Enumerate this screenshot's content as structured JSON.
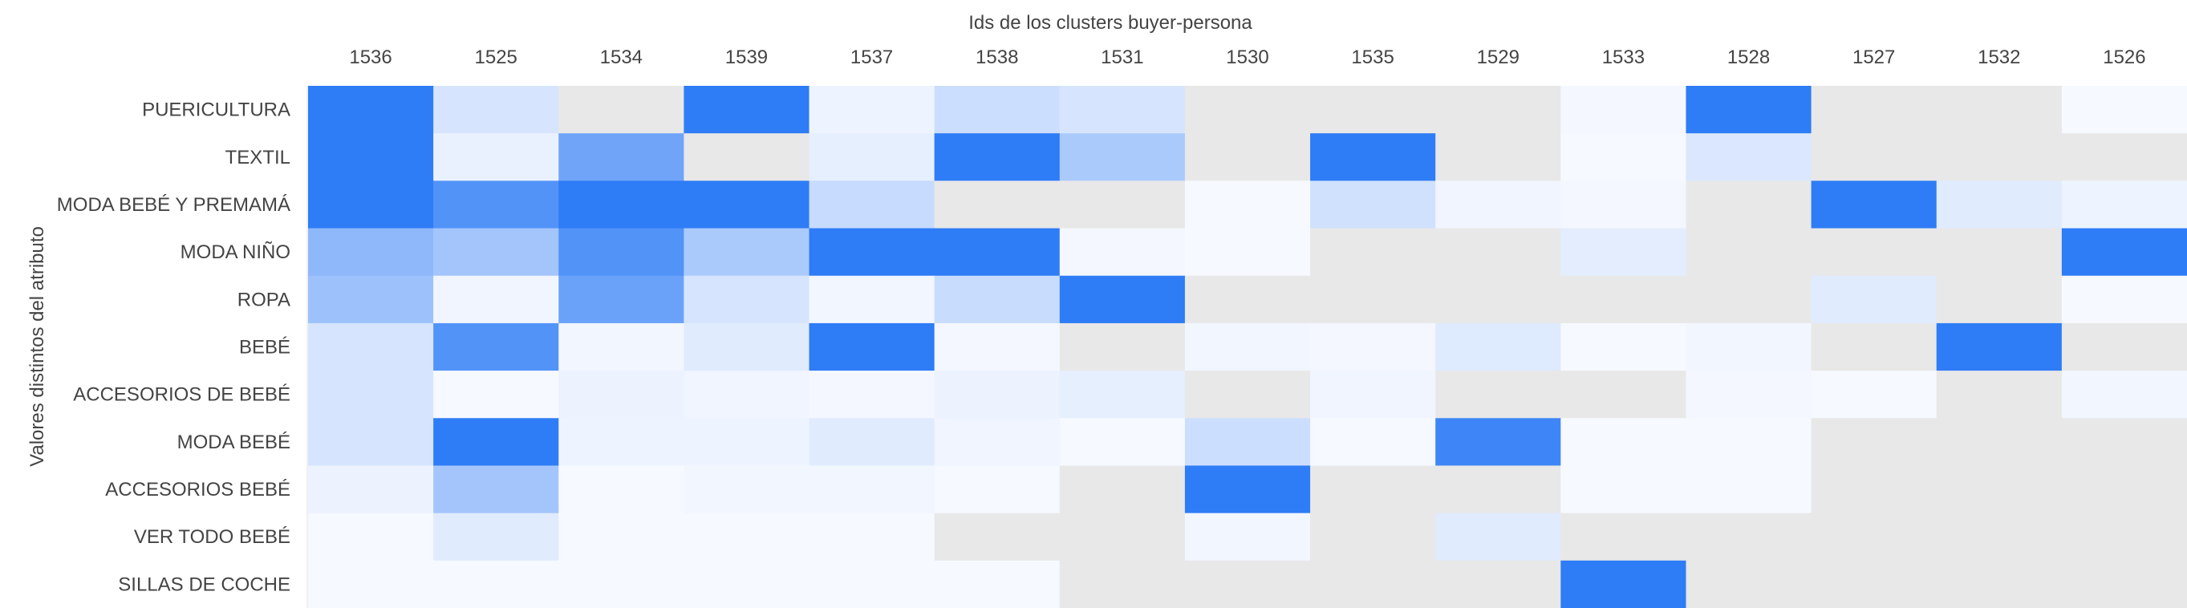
{
  "chart_data": {
    "type": "heatmap",
    "title": "",
    "xlabel": "Ids de los clusters buyer-persona",
    "ylabel": "Valores distintos del atributo",
    "x_axis_position": "top",
    "legend": "none",
    "grid": false,
    "colors": {
      "high": "#2e7cf6",
      "low": "#f8faff",
      "missing": "#e8e8e8",
      "text": "#444444"
    },
    "value_range": [
      0,
      1
    ],
    "x": [
      "1536",
      "1525",
      "1534",
      "1539",
      "1537",
      "1538",
      "1531",
      "1530",
      "1535",
      "1529",
      "1533",
      "1528",
      "1527",
      "1532",
      "1526"
    ],
    "y": [
      "PUERICULTURA",
      "TEXTIL",
      "MODA BEBÉ Y PREMAMÁ",
      "MODA NIÑO",
      "ROPA",
      "BEBÉ",
      "ACCESORIOS DE BEBÉ",
      "MODA BEBÉ",
      "ACCESORIOS BEBÉ",
      "VER TODO BEBÉ",
      "SILLAS DE COCHE"
    ],
    "z": [
      [
        1.0,
        0.17,
        null,
        1.0,
        0.05,
        0.22,
        0.17,
        null,
        null,
        null,
        0.02,
        1.0,
        null,
        null,
        0.01
      ],
      [
        1.0,
        0.07,
        0.68,
        null,
        0.09,
        1.0,
        0.38,
        null,
        1.0,
        null,
        0.01,
        0.15,
        null,
        null,
        null
      ],
      [
        1.0,
        0.82,
        1.0,
        1.0,
        0.25,
        null,
        null,
        0.01,
        0.2,
        0.04,
        0.02,
        null,
        1.0,
        0.12,
        0.05
      ],
      [
        0.52,
        0.42,
        0.82,
        0.38,
        1.0,
        1.0,
        0.02,
        0.01,
        null,
        null,
        0.1,
        null,
        null,
        null,
        1.0
      ],
      [
        0.45,
        0.04,
        0.7,
        0.17,
        0.03,
        0.24,
        1.0,
        null,
        null,
        null,
        null,
        null,
        0.12,
        null,
        0.01
      ],
      [
        0.17,
        0.82,
        0.03,
        0.12,
        1.0,
        0.02,
        null,
        0.03,
        0.02,
        0.13,
        0.01,
        0.03,
        null,
        1.0,
        null
      ],
      [
        0.17,
        0.01,
        0.06,
        0.04,
        0.02,
        0.06,
        0.09,
        null,
        0.04,
        null,
        null,
        0.02,
        0.01,
        null,
        0.03
      ],
      [
        0.17,
        1.0,
        0.05,
        0.05,
        0.12,
        0.04,
        0.01,
        0.22,
        0.01,
        0.92,
        0.01,
        0.01,
        null,
        null,
        null
      ],
      [
        0.06,
        0.42,
        0.01,
        0.03,
        0.03,
        0.01,
        null,
        1.0,
        null,
        null,
        0.01,
        0.01,
        null,
        null,
        null
      ],
      [
        0.01,
        0.12,
        0.01,
        0.01,
        0.01,
        null,
        null,
        0.03,
        null,
        0.12,
        null,
        null,
        null,
        null,
        null
      ],
      [
        0.01,
        0.01,
        0.01,
        0.01,
        0.01,
        0.01,
        null,
        null,
        null,
        null,
        1.0,
        null,
        null,
        null,
        null
      ]
    ]
  }
}
